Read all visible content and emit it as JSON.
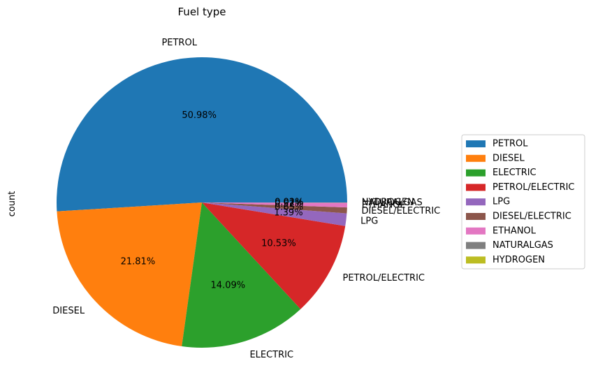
{
  "chart_data": {
    "type": "pie",
    "title": "Fuel type",
    "ylabel": "count",
    "categories": [
      "PETROL",
      "DIESEL",
      "ELECTRIC",
      "PETROL/ELECTRIC",
      "LPG",
      "DIESEL/ELECTRIC",
      "ETHANOL",
      "NATURALGAS",
      "HYDROGEN"
    ],
    "values": [
      50.98,
      21.81,
      14.09,
      10.53,
      1.39,
      0.65,
      0.52,
      0.02,
      0.01
    ],
    "value_labels": [
      "50.98%",
      "21.81%",
      "14.09%",
      "10.53%",
      "1.39%",
      "0.65%",
      "0.52%",
      "0.02%",
      "0.01%"
    ],
    "colors": [
      "#1f77b4",
      "#ff7f0e",
      "#2ca02c",
      "#d62728",
      "#9467bd",
      "#8c564b",
      "#e377c2",
      "#7f7f7f",
      "#bcbd22"
    ],
    "legend_position": "right",
    "start_angle_deg": 0,
    "direction": "counterclockwise"
  }
}
